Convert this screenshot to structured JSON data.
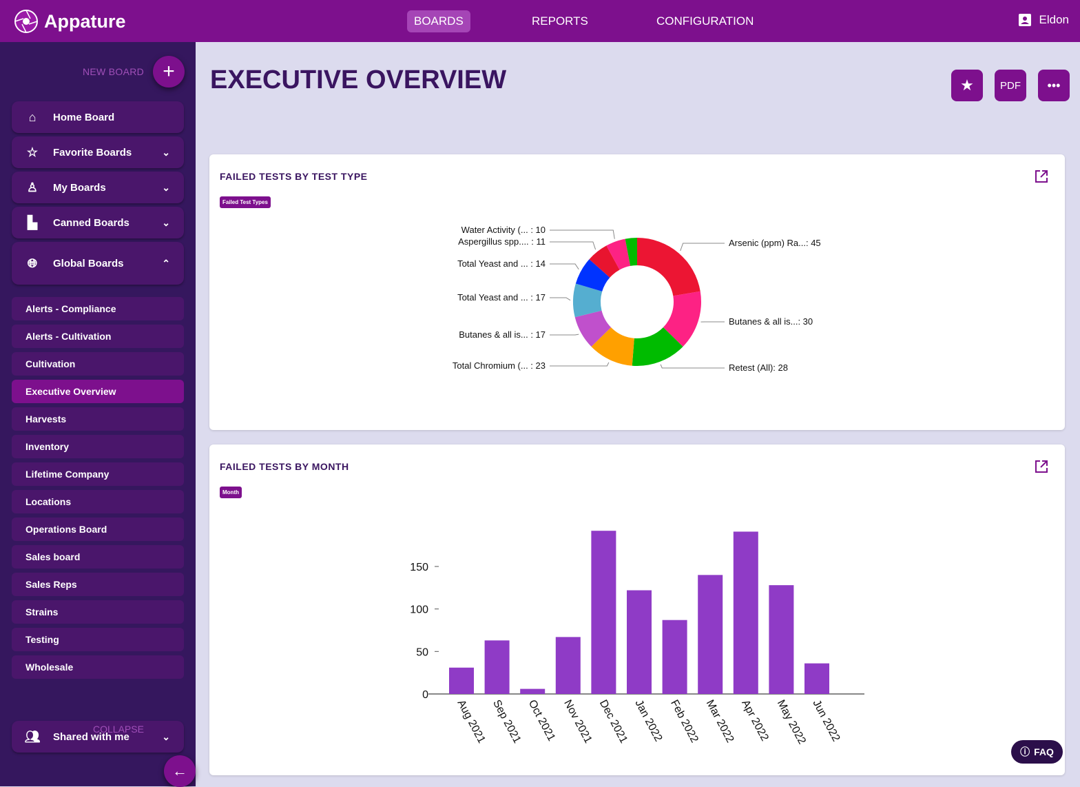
{
  "app": {
    "name": "Appature"
  },
  "nav": {
    "tabs": [
      {
        "label": "BOARDS",
        "active": true
      },
      {
        "label": "REPORTS"
      },
      {
        "label": "CONFIGURATION"
      }
    ],
    "user": "Eldon"
  },
  "sidebar": {
    "new_board": "NEW BOARD",
    "groups": [
      {
        "label": "Home Board",
        "icon": "home-icon"
      },
      {
        "label": "Favorite Boards",
        "icon": "star-outline-icon"
      },
      {
        "label": "My Boards",
        "icon": "person-icon"
      },
      {
        "label": "Canned Boards",
        "icon": "document-icon"
      },
      {
        "label": "Global Boards",
        "icon": "globe-icon"
      }
    ],
    "items": [
      "Alerts - Compliance",
      "Alerts - Cultivation",
      "Cultivation",
      "Executive Overview",
      "Harvests",
      "Inventory",
      "Lifetime Company",
      "Locations",
      "Operations Board",
      "Sales board",
      "Sales Reps",
      "Strains",
      "Testing",
      "Wholesale"
    ],
    "selected": "Executive Overview",
    "shared": "Shared with me",
    "collapse": "COLLAPSE"
  },
  "page": {
    "title": "EXECUTIVE OVERVIEW",
    "pdf": "PDF",
    "faq": "FAQ"
  },
  "colors": {
    "brand": "#7d108d",
    "sidebar": "#35175e",
    "bar": "#8f3bc6"
  },
  "chart_data": [
    {
      "type": "pie",
      "donut": true,
      "title": "FAILED TESTS BY TEST TYPE",
      "legend_chip": "Failed Test Types",
      "slices": [
        {
          "label": "Arsenic (ppm) Ra...",
          "value": 45,
          "color": "#ec1533"
        },
        {
          "label": "Butanes & all is...",
          "value": 30,
          "color": "#fd2284"
        },
        {
          "label": "Retest (All)",
          "value": 28,
          "color": "#00bb00"
        },
        {
          "label": "Total Chromium (...",
          "value": 23,
          "color": "#ffa000"
        },
        {
          "label": "Butanes & all is...",
          "value": 17,
          "color": "#c050cc"
        },
        {
          "label": "Total Yeast and ...",
          "value": 17,
          "color": "#55aed0"
        },
        {
          "label": "Total Yeast and ...",
          "value": 14,
          "color": "#0033ff"
        },
        {
          "label": "Aspergillus spp....",
          "value": 11,
          "color": "#e8142f"
        },
        {
          "label": "Water Activity (...",
          "value": 10,
          "color": "#fd2284"
        },
        {
          "label": "",
          "value": 6,
          "color": "#00bb00"
        }
      ]
    },
    {
      "type": "bar",
      "title": "FAILED TESTS BY MONTH",
      "legend_chip": "Month",
      "categories": [
        "Aug 2021",
        "Sep 2021",
        "Oct 2021",
        "Nov 2021",
        "Dec 2021",
        "Jan 2022",
        "Feb 2022",
        "Mar 2022",
        "Apr 2022",
        "May 2022",
        "Jun 2022"
      ],
      "values": [
        31,
        63,
        6,
        67,
        192,
        122,
        87,
        140,
        191,
        128,
        36
      ],
      "yticks": [
        0,
        50,
        100,
        150
      ],
      "ylim": [
        0,
        200
      ]
    }
  ]
}
